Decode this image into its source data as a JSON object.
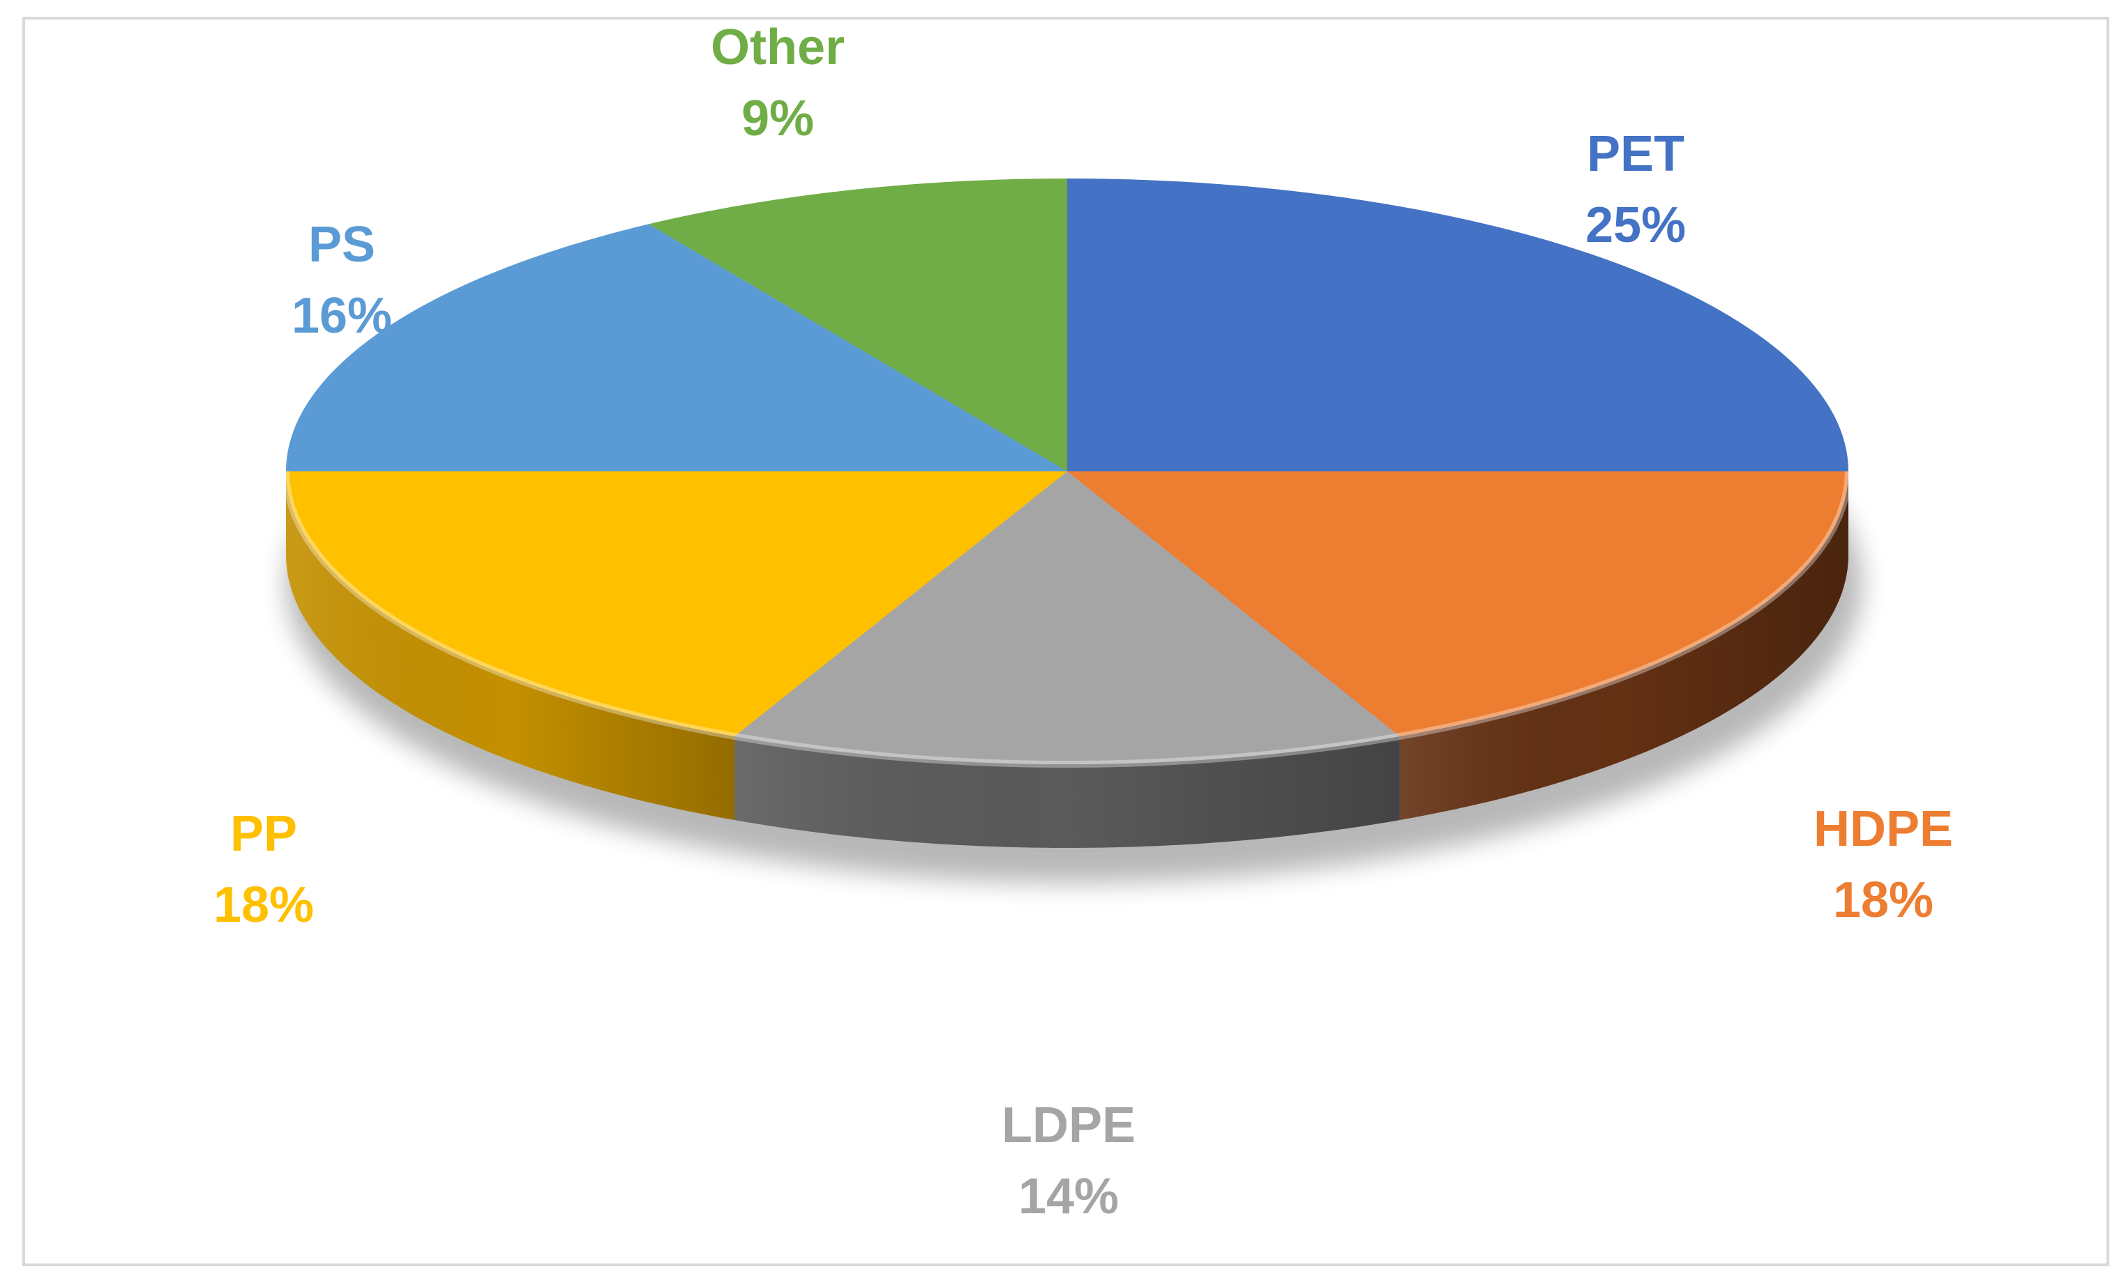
{
  "chart_data": {
    "type": "pie",
    "style": "3d",
    "slices": [
      {
        "label": "PET",
        "value": 25,
        "display": "25%",
        "color": "#4472C4",
        "side_color": "#2F5597"
      },
      {
        "label": "HDPE",
        "value": 18,
        "display": "18%",
        "color": "#ED7D31",
        "side_color": "#633013"
      },
      {
        "label": "LDPE",
        "value": 14,
        "display": "14%",
        "color": "#A5A5A5",
        "side_color": "#5A5A5A"
      },
      {
        "label": "PP",
        "value": 18,
        "display": "18%",
        "color": "#FFC000",
        "side_color": "#C49000"
      },
      {
        "label": "PS",
        "value": 16,
        "display": "16%",
        "color": "#5B9BD5",
        "side_color": "#3D6F9E"
      },
      {
        "label": "Other",
        "value": 9,
        "display": "9%",
        "color": "#70AD47",
        "side_color": "#4E7A31"
      }
    ],
    "legend": "none",
    "data_labels": "outside, category name and percentage"
  }
}
